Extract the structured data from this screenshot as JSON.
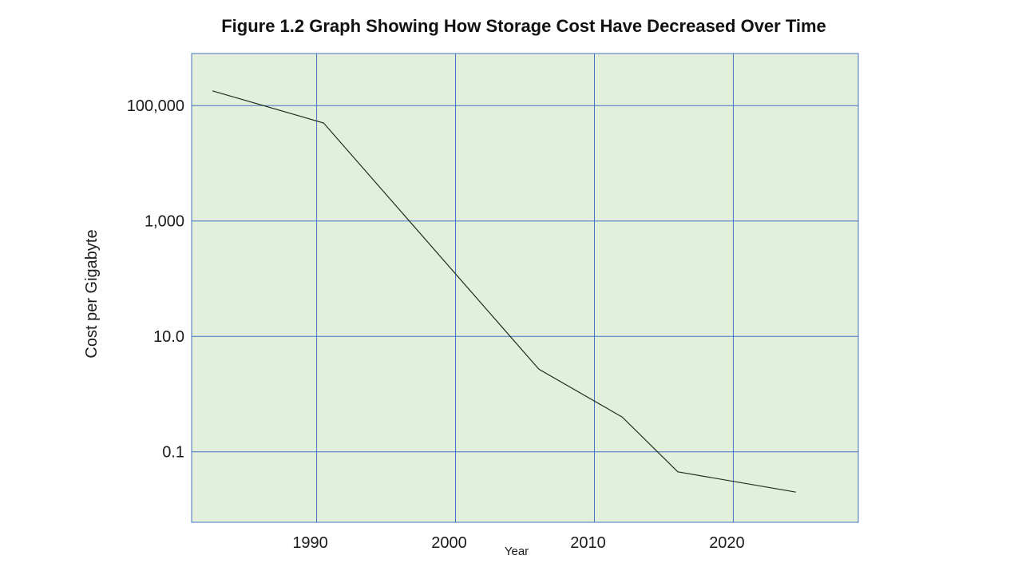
{
  "chart_data": {
    "type": "line",
    "title": "Figure 1.2 Graph Showing How Storage Cost Have Decreased Over Time",
    "xlabel": "Year",
    "ylabel": "Cost per Gigabyte",
    "x_ticks": [
      {
        "value": 1990,
        "label": "1990"
      },
      {
        "value": 2000,
        "label": "2000"
      },
      {
        "value": 2010,
        "label": "2010"
      },
      {
        "value": 2020,
        "label": "2020"
      }
    ],
    "y_ticks": [
      {
        "value": 100000,
        "label": "100,000"
      },
      {
        "value": 1000,
        "label": "1,000"
      },
      {
        "value": 10,
        "label": "10.0"
      },
      {
        "value": 0.1,
        "label": "0.1"
      }
    ],
    "xlim": [
      1981,
      2029
    ],
    "ylim": [
      0.006,
      800000
    ],
    "y_scale": "log",
    "grid": true,
    "background_color": "#e2efda",
    "grid_color": "#4472c4",
    "line_color": "#1f2d1f",
    "series": [
      {
        "x": [
          1982.5,
          1990.5,
          2006,
          2012,
          2016,
          2024.5
        ],
        "y": [
          180000,
          50000,
          2.7,
          0.4,
          0.045,
          0.02
        ]
      }
    ]
  }
}
